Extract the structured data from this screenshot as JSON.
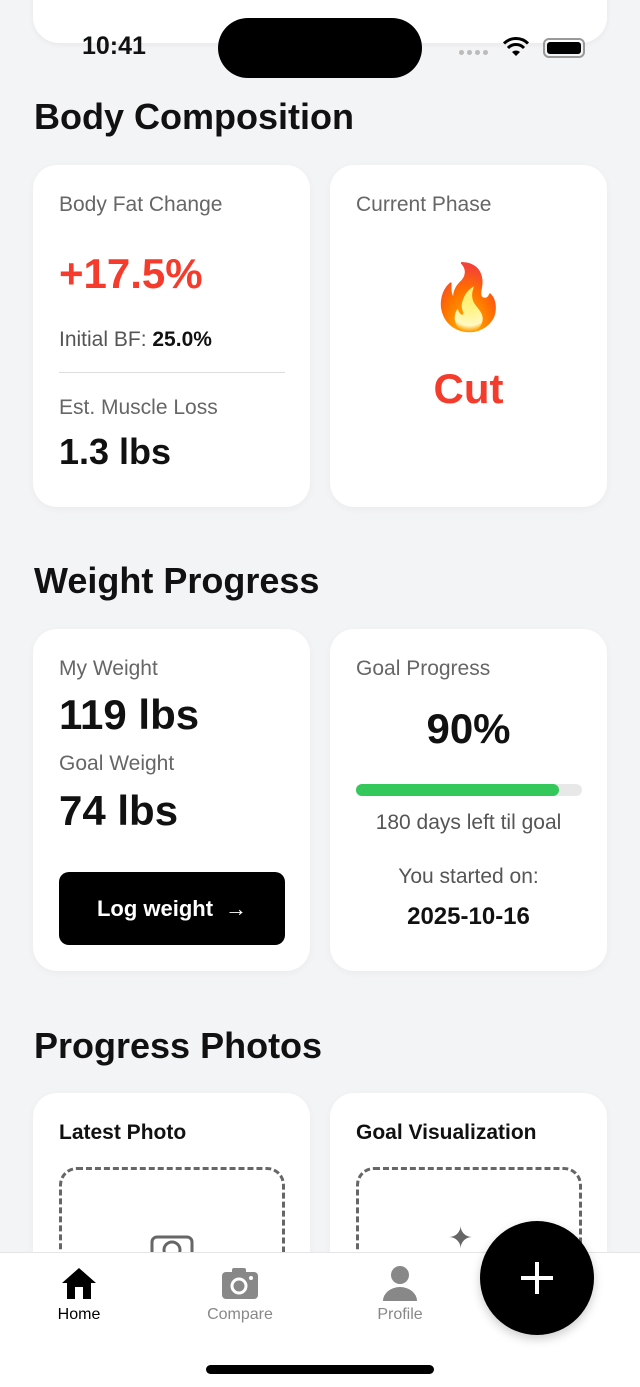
{
  "status": {
    "time": "10:41"
  },
  "body_composition": {
    "title": "Body Composition",
    "body_fat": {
      "label": "Body Fat Change",
      "value": "+17.5%",
      "initial_label": "Initial BF:",
      "initial_value": "25.0%",
      "muscle_label": "Est. Muscle Loss",
      "muscle_value": "1.3 lbs"
    },
    "phase": {
      "label": "Current Phase",
      "emoji": "🔥",
      "value": "Cut"
    }
  },
  "weight_progress": {
    "title": "Weight Progress",
    "weight": {
      "my_label": "My Weight",
      "my_value": "119 lbs",
      "goal_label": "Goal Weight",
      "goal_value": "74 lbs",
      "button": "Log weight",
      "button_icon": "→"
    },
    "goal": {
      "label": "Goal Progress",
      "percent_text": "90%",
      "progress": 0.9,
      "days_left": "180 days left til goal",
      "started_label": "You started on:",
      "started_date": "2025-10-16"
    }
  },
  "photos": {
    "title": "Progress Photos",
    "latest": "Latest Photo",
    "goal_vis": "Goal Visualization"
  },
  "nav": {
    "home": "Home",
    "compare": "Compare",
    "profile": "Profile"
  },
  "colors": {
    "accent_red": "#f53b2b",
    "progress_green": "#34c759"
  }
}
